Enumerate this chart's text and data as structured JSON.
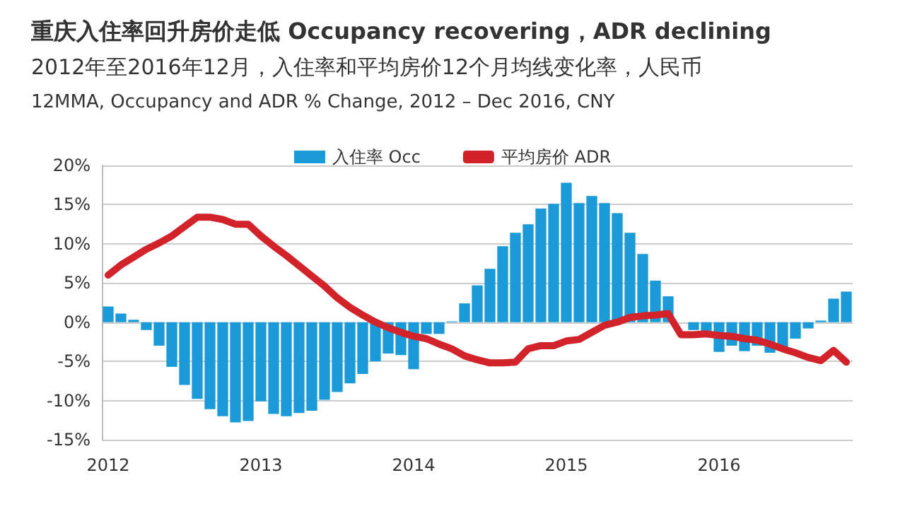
{
  "chart_data": {
    "type": "bar",
    "title": "重庆入住率回升房价走低 Occupancy recovering，ADR declining",
    "subtitle": "2012年至2016年12月，入住率和平均房价12个月均线变化率，人民币",
    "annotations": [
      "12MMA, Occupancy and ADR % Change, 2012 – Dec 2016, CNY"
    ],
    "categories": [
      "2012",
      null,
      null,
      null,
      null,
      null,
      null,
      null,
      null,
      null,
      null,
      null,
      "2013",
      null,
      null,
      null,
      null,
      null,
      null,
      null,
      null,
      null,
      null,
      null,
      "2014",
      null,
      null,
      null,
      null,
      null,
      null,
      null,
      null,
      null,
      null,
      null,
      "2015",
      null,
      null,
      null,
      null,
      null,
      null,
      null,
      null,
      null,
      null,
      null,
      "2016",
      null,
      null,
      null,
      null,
      null,
      null,
      null,
      null,
      null,
      null
    ],
    "series": [
      {
        "name": "入住率 Occ",
        "color": "#1a9ad6",
        "values": [
          2.0,
          1.1,
          0.3,
          -1.0,
          -3.0,
          -5.7,
          -8.0,
          -9.8,
          -11.1,
          -12.0,
          -12.8,
          -12.6,
          -10.1,
          -11.7,
          -12.0,
          -11.6,
          -11.3,
          -9.9,
          -8.9,
          -7.8,
          -6.6,
          -5.0,
          -4.0,
          -4.2,
          -6.0,
          -1.5,
          -1.5,
          0.1,
          2.4,
          4.7,
          6.8,
          9.7,
          11.4,
          12.5,
          14.5,
          15.1,
          17.8,
          15.2,
          16.1,
          15.2,
          13.9,
          11.4,
          8.7,
          5.3,
          3.3,
          0.0,
          -1.0,
          -1.1,
          -3.8,
          -3.0,
          -3.7,
          -3.0,
          -3.9,
          -3.3,
          -2.1,
          -0.8,
          0.2,
          3.0,
          3.9
        ]
      },
      {
        "name": "平均房价 ADR",
        "type": "line",
        "color": "#d2232a",
        "values": [
          6.0,
          7.3,
          8.3,
          9.3,
          10.1,
          11.0,
          12.2,
          13.4,
          13.4,
          13.1,
          12.5,
          12.5,
          11.0,
          9.7,
          8.5,
          7.2,
          5.9,
          4.6,
          3.1,
          1.9,
          0.9,
          0.0,
          -0.7,
          -1.3,
          -1.8,
          -2.1,
          -2.8,
          -3.4,
          -4.3,
          -4.8,
          -5.2,
          -5.2,
          -5.1,
          -3.4,
          -3.0,
          -3.0,
          -2.4,
          -2.2,
          -1.3,
          -0.4,
          0.0,
          0.6,
          0.8,
          0.9,
          1.1,
          -1.6,
          -1.6,
          -1.5,
          -1.7,
          -1.8,
          -2.1,
          -2.3,
          -2.8,
          -3.4,
          -3.9,
          -4.5,
          -4.9,
          -3.6,
          -5.1
        ]
      }
    ],
    "ylim": [
      -15,
      20
    ],
    "yticks": [
      {
        "value": -15,
        "label": "-15%"
      },
      {
        "value": -10,
        "label": "-10%"
      },
      {
        "value": -5,
        "label": "-5%"
      },
      {
        "value": 0,
        "label": "0%"
      },
      {
        "value": 5,
        "label": "5%"
      },
      {
        "value": 10,
        "label": "10%"
      },
      {
        "value": 15,
        "label": "15%"
      },
      {
        "value": 20,
        "label": "20%"
      }
    ],
    "grid": "y",
    "legend": "top",
    "marker": "none",
    "line_style": "solid"
  }
}
